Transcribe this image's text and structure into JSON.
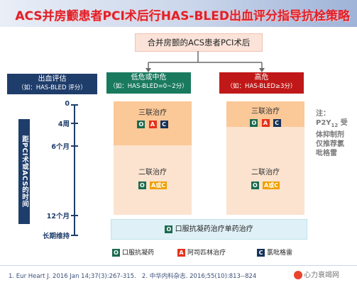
{
  "title": "ACS并房颤患者PCI术后行HAS-BLED出血评分指导抗栓策略",
  "top_box": "合并房颤的ACS患者PCI术后",
  "headers": {
    "left_line1": "出血评估",
    "left_line2": "（如：HAS-BLED 评分）",
    "low_line1": "低危或中危",
    "low_line2": "（如：HAS-BLED=0~2分）",
    "high_line1": "高危",
    "high_line2": "（如：HAS-BLED≥3分）"
  },
  "axis": {
    "label": "距PCI术或ACS的时间",
    "ticks": [
      "0",
      "4周",
      "6个月",
      "12个月",
      "长期维持"
    ]
  },
  "columns": {
    "low": {
      "triple_label": "三联治疗",
      "triple_badges": [
        "O",
        "A",
        "C"
      ],
      "dual_label": "二联治疗",
      "dual_badges": [
        "O",
        "A或C"
      ]
    },
    "high": {
      "triple_label": "三联治疗",
      "triple_badges": [
        "O",
        "A",
        "C"
      ],
      "dual_label": "二联治疗",
      "dual_badges": [
        "O",
        "A或C"
      ]
    }
  },
  "bottom_bar": {
    "badge": "O",
    "text": "口服抗凝药治疗单药治疗"
  },
  "note": {
    "line1": "注：",
    "line2": "P2Y",
    "line2_sub": "12",
    "line2_rest": "受",
    "line3": "体抑制剂",
    "line4": "仅推荐氯",
    "line5": "吡格雷"
  },
  "legend": [
    {
      "badge": "O",
      "label": "口服抗凝药",
      "color": "#1b6b4e"
    },
    {
      "badge": "A",
      "label": "阿司匹林治疗",
      "color": "#e5331a"
    },
    {
      "badge": "C",
      "label": "氯吡格雷",
      "color": "#16325a"
    }
  ],
  "references": {
    "ref1": "1. Eur Heart J. 2016 Jan 14;37(3):267-315.",
    "ref2": "2. 中华内科杂志. 2016;55(10):813--824"
  },
  "watermark": "心力衰竭网"
}
